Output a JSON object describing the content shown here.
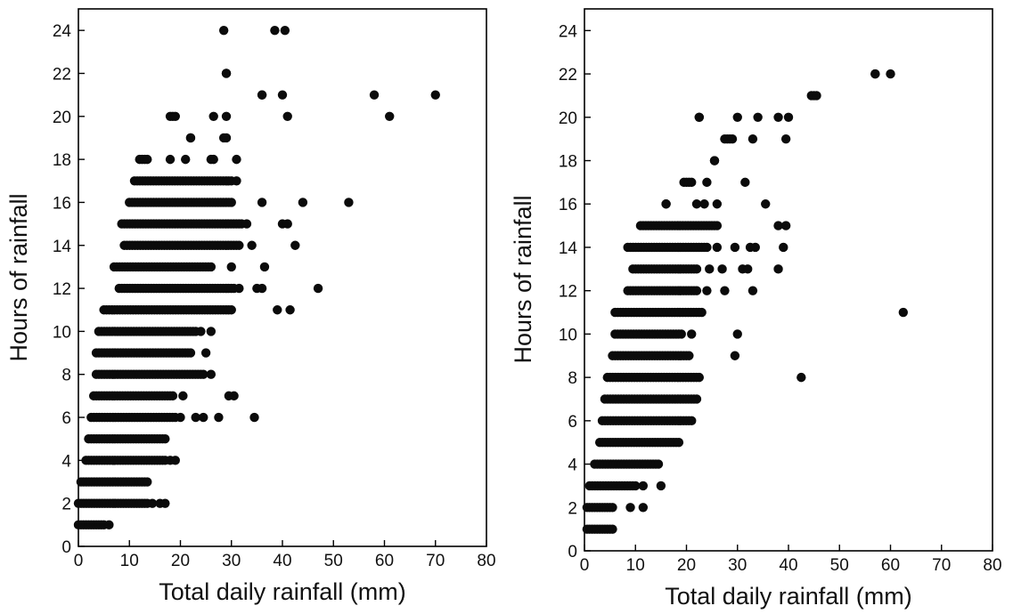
{
  "chart_data": [
    {
      "type": "scatter",
      "title": "",
      "xlabel": "Total daily rainfall (mm)",
      "ylabel": "Hours of rainfall",
      "xlim": [
        0,
        80
      ],
      "ylim": [
        0,
        25
      ],
      "xticks": [
        "0",
        "10",
        "20",
        "30",
        "40",
        "50",
        "60",
        "70",
        "80"
      ],
      "yticks": [
        "0",
        "2",
        "4",
        "6",
        "8",
        "10",
        "12",
        "14",
        "16",
        "18",
        "20",
        "22",
        "24"
      ],
      "grid": false,
      "rows": [
        {
          "y": 1,
          "x_from": 0.0,
          "x_to": 5.0,
          "extra_x": [
            6.0
          ]
        },
        {
          "y": 2,
          "x_from": 0.0,
          "x_to": 13.5,
          "extra_x": [
            14.5,
            16.0,
            17.0
          ]
        },
        {
          "y": 3,
          "x_from": 0.5,
          "x_to": 13.5,
          "extra_x": []
        },
        {
          "y": 4,
          "x_from": 1.5,
          "x_to": 17.0,
          "extra_x": [
            18.0,
            19.0
          ]
        },
        {
          "y": 5,
          "x_from": 2.0,
          "x_to": 17.0,
          "extra_x": []
        },
        {
          "y": 6,
          "x_from": 2.5,
          "x_to": 19.0,
          "extra_x": [
            20.0,
            23.0,
            24.5,
            27.5,
            34.5
          ]
        },
        {
          "y": 7,
          "x_from": 3.0,
          "x_to": 18.5,
          "extra_x": [
            20.5,
            29.5,
            30.5
          ]
        },
        {
          "y": 8,
          "x_from": 3.5,
          "x_to": 24.5,
          "extra_x": [
            26.0
          ]
        },
        {
          "y": 9,
          "x_from": 3.5,
          "x_to": 22.0,
          "extra_x": [
            25.0
          ]
        },
        {
          "y": 10,
          "x_from": 4.0,
          "x_to": 23.0,
          "extra_x": [
            24.0,
            26.0
          ]
        },
        {
          "y": 11,
          "x_from": 5.0,
          "x_to": 30.0,
          "extra_x": [
            39.0,
            41.5
          ]
        },
        {
          "y": 12,
          "x_from": 8.0,
          "x_to": 30.5,
          "extra_x": [
            31.5,
            35.0,
            36.0,
            47.0
          ]
        },
        {
          "y": 13,
          "x_from": 7.0,
          "x_to": 26.0,
          "extra_x": [
            30.0,
            36.5
          ]
        },
        {
          "y": 14,
          "x_from": 9.0,
          "x_to": 31.5,
          "extra_x": [
            34.0,
            42.5
          ]
        },
        {
          "y": 15,
          "x_from": 8.5,
          "x_to": 32.0,
          "extra_x": [
            33.0,
            40.0,
            41.0
          ]
        },
        {
          "y": 16,
          "x_from": 10.0,
          "x_to": 30.0,
          "extra_x": [
            36.0,
            44.0,
            53.0
          ]
        },
        {
          "y": 17,
          "x_from": 11.0,
          "x_to": 30.0,
          "extra_x": [
            31.0
          ]
        },
        {
          "y": 18,
          "x_from": 12.0,
          "x_to": 13.5,
          "extra_x": [
            18.0,
            21.0,
            26.0,
            26.5,
            31.0
          ]
        },
        {
          "y": 19,
          "x_from": 22.0,
          "x_to": 22.0,
          "extra_x": [
            28.5,
            29.0
          ]
        },
        {
          "y": 20,
          "x_from": 18.0,
          "x_to": 19.0,
          "extra_x": [
            26.5,
            29.0,
            41.0
          ]
        },
        {
          "y": 21,
          "x_from": 36.0,
          "x_to": 36.0,
          "extra_x": [
            40.0,
            58.0,
            70.0
          ]
        },
        {
          "y": 22,
          "x_from": 29.0,
          "x_to": 29.0,
          "extra_x": []
        }
      ],
      "points": [
        {
          "x": 28.5,
          "y": 24
        },
        {
          "x": 38.5,
          "y": 24
        },
        {
          "x": 40.5,
          "y": 24
        },
        {
          "x": 61.0,
          "y": 20
        }
      ]
    },
    {
      "type": "scatter",
      "title": "",
      "xlabel": "Total daily rainfall (mm)",
      "ylabel": "Hours of rainfall",
      "xlim": [
        0,
        80
      ],
      "ylim": [
        0,
        25
      ],
      "xticks": [
        "0",
        "10",
        "20",
        "30",
        "40",
        "50",
        "60",
        "70",
        "80"
      ],
      "yticks": [
        "0",
        "2",
        "4",
        "6",
        "8",
        "10",
        "12",
        "14",
        "16",
        "18",
        "20",
        "22",
        "24"
      ],
      "grid": false,
      "rows": [
        {
          "y": 1,
          "x_from": 0.5,
          "x_to": 5.5,
          "extra_x": []
        },
        {
          "y": 2,
          "x_from": 0.5,
          "x_to": 5.5,
          "extra_x": [
            9.0,
            11.5
          ]
        },
        {
          "y": 3,
          "x_from": 1.0,
          "x_to": 10.0,
          "extra_x": [
            11.5,
            15.0
          ]
        },
        {
          "y": 4,
          "x_from": 2.0,
          "x_to": 14.5,
          "extra_x": []
        },
        {
          "y": 5,
          "x_from": 3.0,
          "x_to": 18.5,
          "extra_x": []
        },
        {
          "y": 6,
          "x_from": 3.5,
          "x_to": 21.0,
          "extra_x": []
        },
        {
          "y": 7,
          "x_from": 4.0,
          "x_to": 22.0,
          "extra_x": []
        },
        {
          "y": 8,
          "x_from": 4.5,
          "x_to": 22.5,
          "extra_x": [
            42.5
          ]
        },
        {
          "y": 9,
          "x_from": 5.5,
          "x_to": 20.5,
          "extra_x": [
            29.5
          ]
        },
        {
          "y": 10,
          "x_from": 6.0,
          "x_to": 19.0,
          "extra_x": [
            21.0,
            30.0
          ]
        },
        {
          "y": 11,
          "x_from": 6.0,
          "x_to": 23.0,
          "extra_x": [
            62.5
          ]
        },
        {
          "y": 12,
          "x_from": 8.5,
          "x_to": 22.0,
          "extra_x": [
            24.0,
            27.5,
            33.0
          ]
        },
        {
          "y": 13,
          "x_from": 9.5,
          "x_to": 22.0,
          "extra_x": [
            24.5,
            27.0,
            31.0,
            32.0,
            38.0
          ]
        },
        {
          "y": 14,
          "x_from": 8.5,
          "x_to": 24.0,
          "extra_x": [
            26.0,
            29.5,
            32.5,
            33.5,
            39.0
          ]
        },
        {
          "y": 15,
          "x_from": 11.0,
          "x_to": 26.0,
          "extra_x": [
            38.0,
            39.5
          ]
        },
        {
          "y": 16,
          "x_from": 16.0,
          "x_to": 16.0,
          "extra_x": [
            22.0,
            23.5,
            26.0,
            35.5
          ]
        },
        {
          "y": 17,
          "x_from": 19.5,
          "x_to": 21.0,
          "extra_x": [
            24.0,
            31.5
          ]
        },
        {
          "y": 18,
          "x_from": 25.5,
          "x_to": 25.5,
          "extra_x": []
        },
        {
          "y": 19,
          "x_from": 27.5,
          "x_to": 29.0,
          "extra_x": [
            33.0,
            39.5
          ]
        },
        {
          "y": 20,
          "x_from": 22.5,
          "x_to": 22.5,
          "extra_x": [
            30.0,
            34.0,
            38.0,
            40.0
          ]
        },
        {
          "y": 21,
          "x_from": 44.5,
          "x_to": 45.5,
          "extra_x": []
        },
        {
          "y": 22,
          "x_from": 57.0,
          "x_to": 57.0,
          "extra_x": [
            60.0
          ]
        }
      ],
      "points": []
    }
  ]
}
